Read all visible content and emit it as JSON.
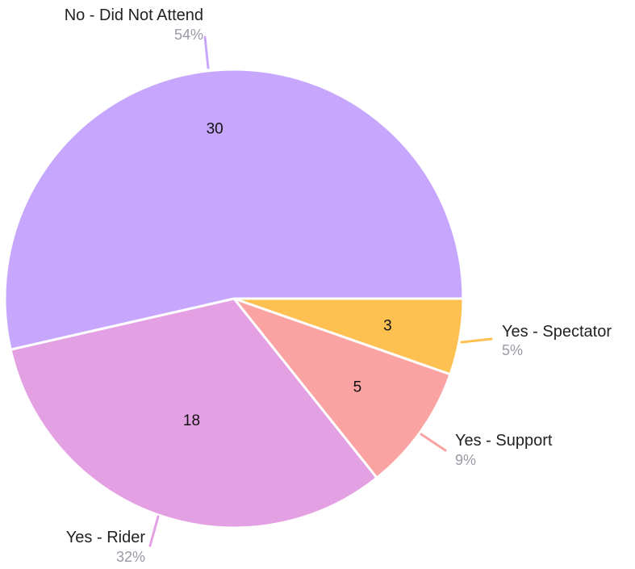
{
  "chart_data": {
    "type": "pie",
    "title": "",
    "slices": [
      {
        "label": "Yes - Spectator",
        "value": 3,
        "percent_label": "5%",
        "color": "#fec151"
      },
      {
        "label": "Yes - Support",
        "value": 5,
        "percent_label": "9%",
        "color": "#fba3a3"
      },
      {
        "label": "Yes - Rider",
        "value": 18,
        "percent_label": "32%",
        "color": "#e3a0e3"
      },
      {
        "label": "No - Did Not Attend",
        "value": 30,
        "percent_label": "54%",
        "color": "#c6a7fd"
      }
    ],
    "start_direction": "right (3 o'clock), clockwise",
    "slice_border_color": "#ffffff"
  }
}
